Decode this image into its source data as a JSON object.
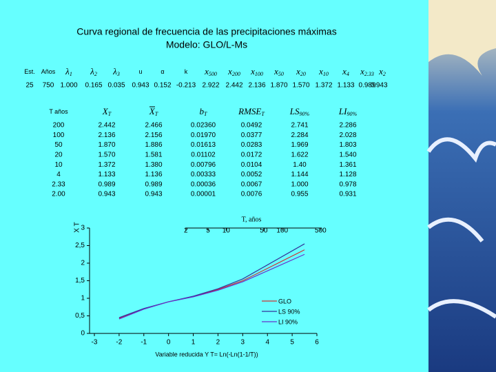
{
  "title": [
    "Curva regional de frecuencia de las precipitaciones máximas",
    "Modelo: GLO/L-Ms"
  ],
  "params": {
    "header": [
      {
        "main": "Est."
      },
      {
        "main": "Años"
      },
      {
        "main": "λ",
        "sub": "1"
      },
      {
        "main": "λ",
        "sub": "2"
      },
      {
        "main": "λ",
        "sub": "3"
      },
      {
        "main": "u"
      },
      {
        "main": "α"
      },
      {
        "main": "k"
      },
      {
        "main": "x",
        "sub": "500"
      },
      {
        "main": "x",
        "sub": "200"
      },
      {
        "main": "x",
        "sub": "100"
      },
      {
        "main": "x",
        "sub": "50"
      },
      {
        "main": "x",
        "sub": "20"
      },
      {
        "main": "x",
        "sub": "10"
      },
      {
        "main": "x",
        "sub": "4"
      },
      {
        "main": "x",
        "sub": "2.33"
      },
      {
        "main": "x",
        "sub": "2"
      }
    ],
    "row": [
      "25",
      "750",
      "1.000",
      "0.165",
      "0.035",
      "0.943",
      "0.152",
      "-0.213",
      "2.922",
      "2.442",
      "2.136",
      "1.870",
      "1.570",
      "1.372",
      "1.133",
      "0.989",
      "0.943"
    ]
  },
  "quantiles": {
    "header": [
      {
        "main": "T años"
      },
      {
        "main": "X",
        "sub": "T"
      },
      {
        "main": "X",
        "sub": "T",
        "bar": true
      },
      {
        "main": "b",
        "sub": "T"
      },
      {
        "main": "RMSE",
        "sub": "T"
      },
      {
        "main": "LS",
        "sub": "90%"
      },
      {
        "main": "LI",
        "sub": "90%"
      }
    ],
    "rows": [
      [
        "200",
        "2.442",
        "2.466",
        "0.02360",
        "0.0492",
        "2.741",
        "2.286"
      ],
      [
        "100",
        "2.136",
        "2.156",
        "0.01970",
        "0.0377",
        "2.284",
        "2.028"
      ],
      [
        "50",
        "1.870",
        "1.886",
        "0.01613",
        "0.0283",
        "1.969",
        "1.803"
      ],
      [
        "20",
        "1.570",
        "1.581",
        "0.01102",
        "0.0172",
        "1.622",
        "1.540"
      ],
      [
        "10",
        "1.372",
        "1.380",
        "0.00796",
        "0.0104",
        "1.40",
        "1.361"
      ],
      [
        "4",
        "1.133",
        "1.136",
        "0.00333",
        "0.0052",
        "1.144",
        "1.128"
      ],
      [
        "2.33",
        "0.989",
        "0.989",
        "0.00036",
        "0.0067",
        "1.000",
        "0.978"
      ],
      [
        "2.00",
        "0.943",
        "0.943",
        "0.00001",
        "0.0076",
        "0.955",
        "0.931"
      ]
    ]
  },
  "chart_data": {
    "type": "line",
    "x_label": "Variable reducida Y T= Ln(-Ln(1-1/T))",
    "y_label": "X T",
    "x2_label": "T, años",
    "xlim": [
      -3,
      6
    ],
    "xticks": [
      -3,
      -2,
      -1,
      0,
      1,
      2,
      3,
      4,
      5,
      6
    ],
    "ylim": [
      0,
      3
    ],
    "yticks": [
      0,
      {
        "value": 0.5,
        "label": "0,5"
      },
      1,
      {
        "value": 1.5,
        "label": "1,5"
      },
      2,
      {
        "value": 2.5,
        "label": "2,5"
      },
      3
    ],
    "x2ticks": [
      {
        "value": 0.7,
        "label": "2"
      },
      {
        "value": 1.6,
        "label": "5"
      },
      {
        "value": 2.33,
        "label": "10"
      },
      {
        "value": 3.85,
        "label": "50"
      },
      {
        "value": 4.6,
        "label": "100"
      },
      {
        "value": 6.15,
        "label": "500"
      }
    ],
    "x": [
      -2,
      -1,
      0,
      1,
      2,
      3,
      4,
      5.5
    ],
    "series": [
      {
        "name": "GLO",
        "color": "#cc3333",
        "values": [
          0.43,
          0.7,
          0.9,
          1.05,
          1.25,
          1.5,
          1.85,
          2.38
        ]
      },
      {
        "name": "LS 90%",
        "color": "#333399",
        "values": [
          0.45,
          0.71,
          0.9,
          1.06,
          1.27,
          1.55,
          1.95,
          2.55
        ]
      },
      {
        "name": "LI 90%",
        "color": "#6633cc",
        "values": [
          0.41,
          0.69,
          0.9,
          1.04,
          1.23,
          1.47,
          1.78,
          2.25
        ]
      }
    ]
  }
}
